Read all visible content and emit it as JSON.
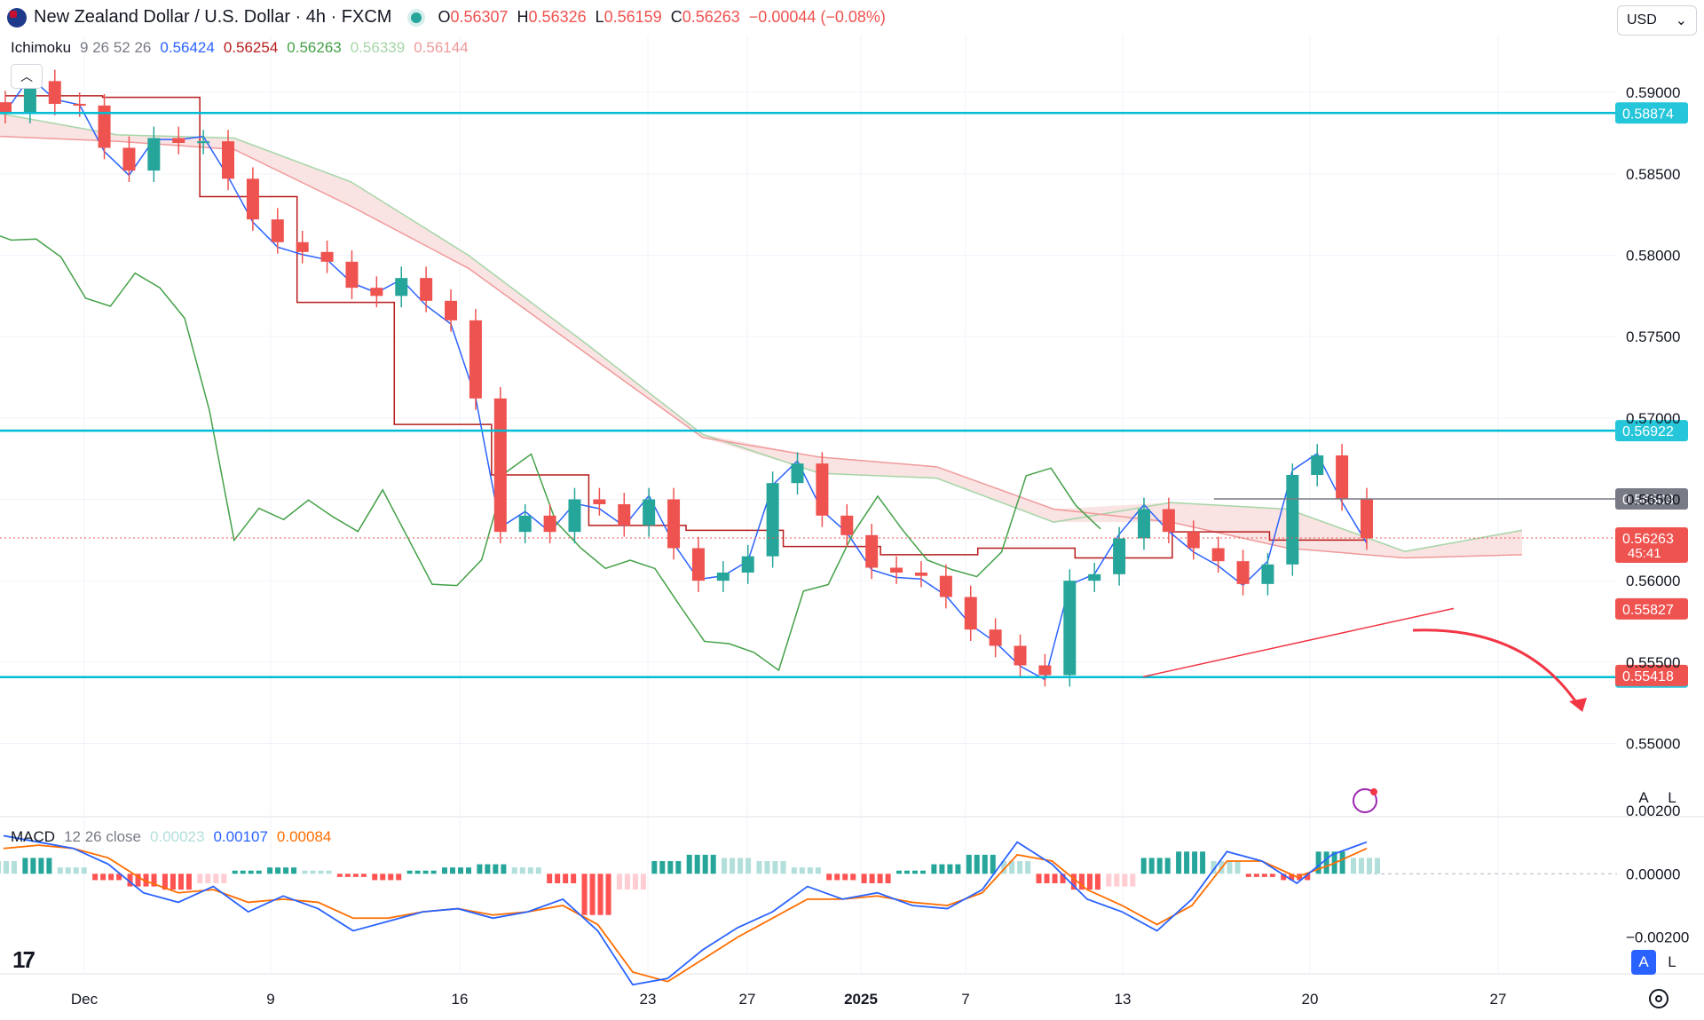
{
  "header": {
    "title": "New Zealand Dollar / U.S. Dollar · 4h · FXCM",
    "open_label": "O",
    "open": "0.56307",
    "high_label": "H",
    "high": "0.56326",
    "low_label": "L",
    "low": "0.56159",
    "close_label": "C",
    "close": "0.56263",
    "change": "−0.00044 (−0.08%)"
  },
  "indicator": {
    "name": "Ichimoku",
    "params": "9 26 52 26",
    "values": [
      "0.56424",
      "0.56254",
      "0.56263",
      "0.56339",
      "0.56144"
    ],
    "colors": [
      "#2962ff",
      "#b71c1c",
      "#43a047",
      "#a5d6a7",
      "#ef9a9a"
    ]
  },
  "currency": "USD",
  "macd": {
    "name": "MACD",
    "params": "12 26 close",
    "values": [
      "0.00023",
      "0.00107",
      "0.00084"
    ],
    "colors": [
      "#b2dfdb",
      "#2962ff",
      "#ff6d00"
    ]
  },
  "buttons": {
    "auto": "A",
    "log": "L"
  },
  "logo": "17",
  "chart_data": [
    {
      "type": "candlestick",
      "title": "New Zealand Dollar / U.S. Dollar · 4h · FXCM",
      "ylim": [
        0.5455,
        0.5935
      ],
      "x_ticks": [
        "Dec",
        "9",
        "16",
        "23",
        "27",
        "2025",
        "7",
        "13",
        "20",
        "27"
      ],
      "y_ticks": [
        "0.55000",
        "0.55500",
        "0.56000",
        "0.56500",
        "0.57000",
        "0.57500",
        "0.58000",
        "0.58500",
        "0.59000"
      ],
      "horizontal_levels": [
        {
          "value": 0.58874,
          "label": "0.58874",
          "color": "#00bcd4"
        },
        {
          "value": 0.56922,
          "label": "0.56922",
          "color": "#00bcd4"
        },
        {
          "value": 0.55408,
          "label": "0.55408",
          "color": "#00bcd4"
        },
        {
          "value": 0.56503,
          "label": "0.56503",
          "color": "#787b86"
        }
      ],
      "price_labels": [
        {
          "value": 0.56263,
          "label": "0.56263",
          "sub": "45:41",
          "color": "#ef5350"
        },
        {
          "value": 0.55827,
          "label": "0.55827",
          "color": "#ef5350"
        },
        {
          "value": 0.55418,
          "label": "0.55418",
          "color": "#ef5350"
        }
      ],
      "trendline": {
        "from": [
          "Jan 13",
          0.5542
        ],
        "to": [
          "Jan 25",
          0.5583
        ],
        "color": "#f23645"
      },
      "projection_arrow": {
        "color": "#f23645",
        "direction": "down"
      },
      "ichimoku": {
        "tenkan_color": "#2962ff",
        "kijun_color": "#b71c1c",
        "chikou_color": "#43a047",
        "cloud_bull_color": "#a5d6a7",
        "cloud_bear_color": "#ef9a9a",
        "kijun_levels": [
          0.5898,
          0.5897,
          0.5836,
          0.5771,
          0.5696,
          0.5665,
          0.5634,
          0.5631,
          0.5621,
          0.5616,
          0.562,
          0.5614,
          0.563,
          0.5625
        ],
        "span_a": [
          0.5887,
          0.5874,
          0.5872,
          0.5845,
          0.58,
          0.5746,
          0.569,
          0.5666,
          0.5663,
          0.5636,
          0.5648,
          0.5644,
          0.5618,
          0.5631
        ],
        "span_b": [
          0.5873,
          0.587,
          0.5865,
          0.583,
          0.5792,
          0.574,
          0.5688,
          0.5676,
          0.567,
          0.5644,
          0.5636,
          0.562,
          0.5614,
          0.5616
        ]
      },
      "close_path": [
        0.5888,
        0.5907,
        0.5893,
        0.5892,
        0.5866,
        0.5852,
        0.5872,
        0.5869,
        0.587,
        0.5847,
        0.5822,
        0.5808,
        0.5802,
        0.5796,
        0.578,
        0.5775,
        0.5786,
        0.5772,
        0.576,
        0.5712,
        0.563,
        0.564,
        0.563,
        0.565,
        0.5647,
        0.5634,
        0.565,
        0.562,
        0.56,
        0.5605,
        0.5615,
        0.566,
        0.5672,
        0.564,
        0.5628,
        0.5608,
        0.5605,
        0.5603,
        0.559,
        0.557,
        0.556,
        0.5548,
        0.5542,
        0.56,
        0.5604,
        0.5626,
        0.5644,
        0.563,
        0.562,
        0.5612,
        0.5598,
        0.561,
        0.5665,
        0.5677,
        0.565,
        0.5626
      ],
      "series": [
        {
          "name": "NZD/USD",
          "type": "candlestick"
        }
      ]
    },
    {
      "type": "bar",
      "title": "MACD 12 26 close",
      "ylim": [
        -0.0031,
        0.0018
      ],
      "y_ticks": [
        "0.00200",
        "0.00000",
        "−0.00200"
      ],
      "histogram": [
        0.0004,
        0.0005,
        0.0002,
        -0.0002,
        -0.0004,
        -0.0005,
        -0.0003,
        0.0001,
        0.0002,
        0.0001,
        -0.0001,
        -0.0002,
        0.0001,
        0.0002,
        0.0003,
        0.0002,
        -0.0003,
        -0.0013,
        -0.0005,
        0.0004,
        0.0006,
        0.0005,
        0.0004,
        0.0002,
        -0.0002,
        -0.0003,
        0.0001,
        0.0003,
        0.0006,
        0.0004,
        -0.0003,
        -0.0005,
        -0.0004,
        0.0005,
        0.0007,
        0.0004,
        -0.0001,
        -0.0002,
        0.0007,
        0.0005
      ],
      "macd_line": [
        0.0012,
        0.001,
        0.0008,
        0.0003,
        -0.0006,
        -0.0009,
        -0.0004,
        -0.0012,
        -0.0007,
        -0.0011,
        -0.0018,
        -0.0015,
        -0.0012,
        -0.0011,
        -0.0014,
        -0.0012,
        -0.0008,
        -0.0018,
        -0.0035,
        -0.0033,
        -0.0024,
        -0.0017,
        -0.0012,
        -0.0004,
        -0.0008,
        -0.0006,
        -0.001,
        -0.0011,
        -0.0005,
        0.001,
        0.0003,
        -0.0008,
        -0.0012,
        -0.0018,
        -0.0008,
        0.0007,
        0.0004,
        -0.0003,
        0.0006,
        0.001
      ],
      "signal_line": [
        0.0008,
        0.0009,
        0.0008,
        0.0005,
        -0.0002,
        -0.0006,
        -0.0005,
        -0.0009,
        -0.0008,
        -0.0009,
        -0.0014,
        -0.0014,
        -0.0012,
        -0.0011,
        -0.0013,
        -0.0012,
        -0.001,
        -0.0016,
        -0.0031,
        -0.0034,
        -0.0027,
        -0.002,
        -0.0014,
        -0.0008,
        -0.0008,
        -0.0007,
        -0.0009,
        -0.001,
        -0.0006,
        0.0006,
        0.0004,
        -0.0005,
        -0.001,
        -0.0016,
        -0.001,
        0.0004,
        0.0004,
        -0.0001,
        0.0003,
        0.0008
      ]
    }
  ]
}
